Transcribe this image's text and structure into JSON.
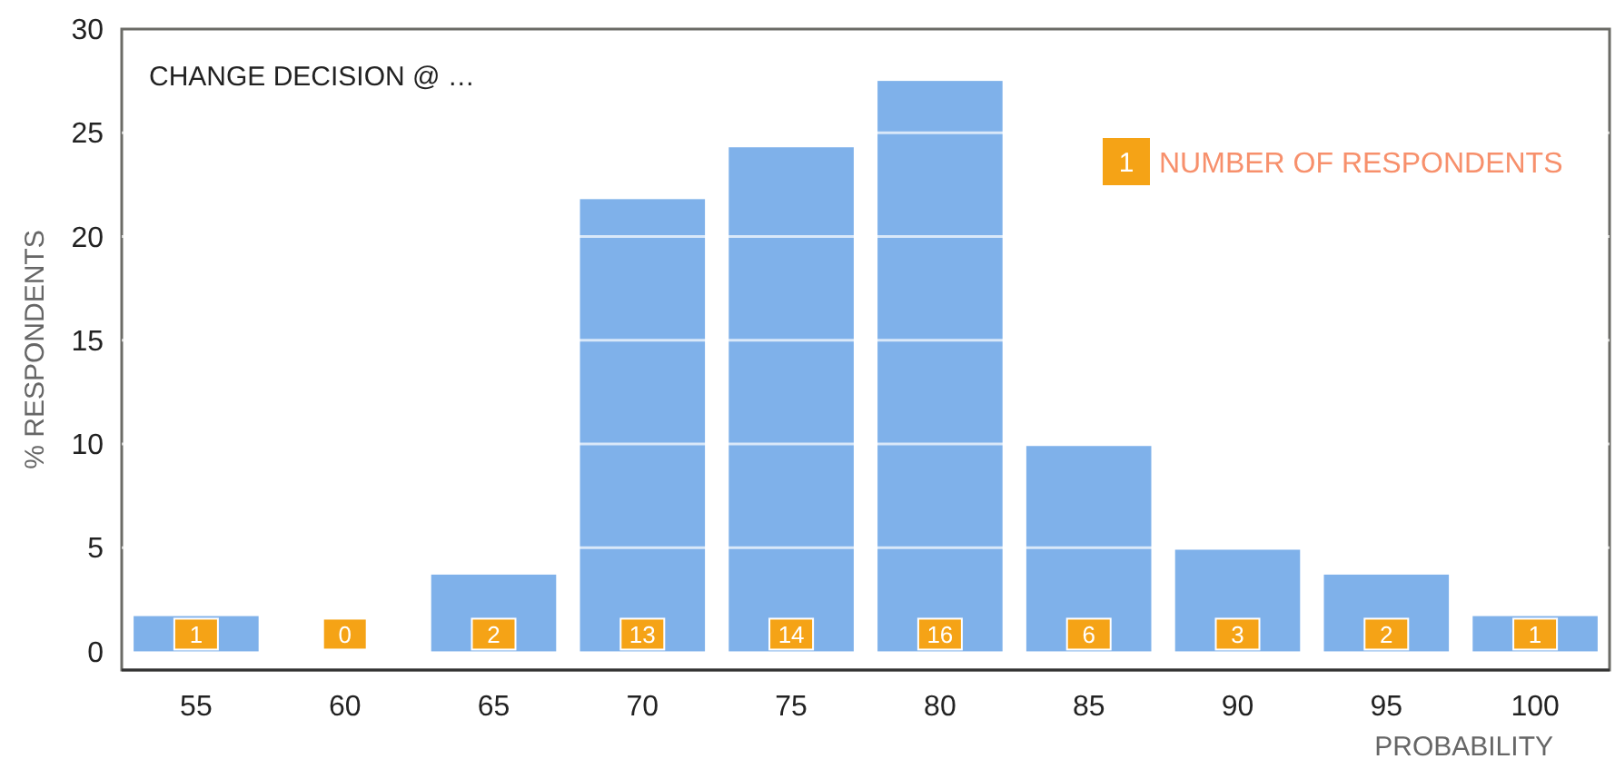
{
  "chart_data": {
    "type": "bar",
    "title": "CHANGE DECISION @ …",
    "xlabel": "PROBABILITY",
    "ylabel": "% RESPONDENTS",
    "categories": [
      "55",
      "60",
      "65",
      "70",
      "75",
      "80",
      "85",
      "90",
      "95",
      "100"
    ],
    "values": [
      1.7,
      0,
      3.7,
      21.8,
      24.3,
      27.5,
      9.9,
      4.9,
      3.7,
      1.7
    ],
    "color": "#7fb1ea",
    "ylim": [
      -0.9,
      30
    ],
    "yticks": [
      0,
      5,
      10,
      15,
      20,
      25,
      30
    ],
    "grid": "y",
    "annotations": [
      {
        "text": "1",
        "x": "55"
      },
      {
        "text": "0",
        "x": "60"
      },
      {
        "text": "2",
        "x": "65"
      },
      {
        "text": "13",
        "x": "70"
      },
      {
        "text": "14",
        "x": "75"
      },
      {
        "text": "16",
        "x": "80"
      },
      {
        "text": "6",
        "x": "85"
      },
      {
        "text": "3",
        "x": "90"
      },
      {
        "text": "2",
        "x": "95"
      },
      {
        "text": "1",
        "x": "100"
      },
      "1",
      "NUMBER OF RESPONDENTS"
    ]
  }
}
